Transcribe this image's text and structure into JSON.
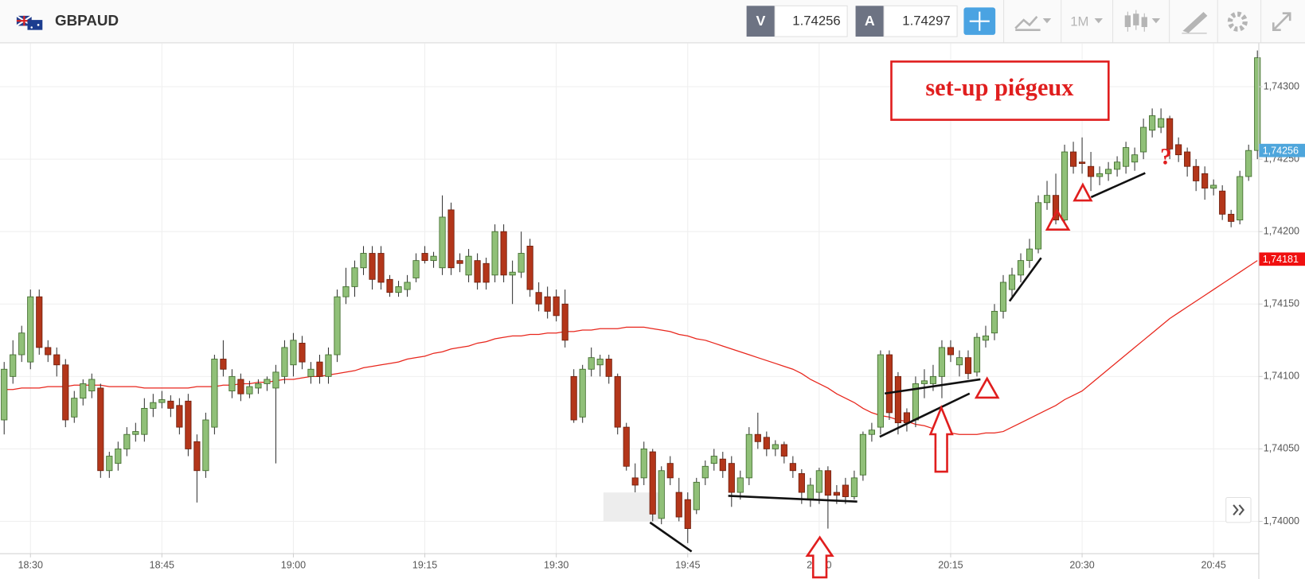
{
  "header": {
    "symbol": "GBPAUD",
    "bid_label": "V",
    "bid": "1.74256",
    "ask_label": "A",
    "ask": "1.74297",
    "timeframe": "1M"
  },
  "chart_data": {
    "type": "candlestick",
    "annotations": {
      "box": "set-up piégeux",
      "question": "?"
    },
    "up_color": "#90c078",
    "down_color": "#b3361a",
    "categories": [
      null,
      null,
      null,
      "18:30",
      null,
      null,
      null,
      null,
      null,
      null,
      null,
      null,
      null,
      null,
      null,
      null,
      null,
      null,
      "18:45",
      null,
      null,
      null,
      null,
      null,
      null,
      null,
      null,
      null,
      null,
      null,
      null,
      null,
      null,
      "19:00",
      null,
      null,
      null,
      null,
      null,
      null,
      null,
      null,
      null,
      null,
      null,
      null,
      null,
      null,
      "19:15",
      null,
      null,
      null,
      null,
      null,
      null,
      null,
      null,
      null,
      null,
      null,
      null,
      null,
      null,
      "19:30",
      null,
      null,
      null,
      null,
      null,
      null,
      null,
      null,
      null,
      null,
      null,
      null,
      null,
      null,
      "19:45",
      null,
      null,
      null,
      null,
      null,
      null,
      null,
      null,
      null,
      null,
      null,
      null,
      null,
      null,
      "20:00",
      null,
      null,
      null,
      null,
      null,
      null,
      null,
      null,
      null,
      null,
      null,
      null,
      null,
      null,
      "20:15",
      null,
      null,
      null,
      null,
      null,
      null,
      null,
      null,
      null,
      null,
      null,
      null,
      null,
      null,
      "20:30",
      null,
      null,
      null,
      null,
      null,
      null,
      null,
      null,
      null,
      null,
      null,
      null,
      null,
      null,
      "20:45",
      null,
      null,
      null,
      null,
      null
    ],
    "candles": [
      [
        1.7407,
        1.7411,
        1.7406,
        1.74105
      ],
      [
        1.741,
        1.74125,
        1.74095,
        1.74115
      ],
      [
        1.74115,
        1.74135,
        1.7411,
        1.7413
      ],
      [
        1.7411,
        1.7416,
        1.74105,
        1.74155
      ],
      [
        1.74155,
        1.7416,
        1.74115,
        1.7412
      ],
      [
        1.7412,
        1.74125,
        1.7411,
        1.74115
      ],
      [
        1.74115,
        1.7412,
        1.741,
        1.74108
      ],
      [
        1.74108,
        1.74112,
        1.74065,
        1.7407
      ],
      [
        1.74072,
        1.7409,
        1.74068,
        1.74085
      ],
      [
        1.74085,
        1.74098,
        1.7408,
        1.74095
      ],
      [
        1.7409,
        1.74102,
        1.74085,
        1.74098
      ],
      [
        1.74092,
        1.74095,
        1.7403,
        1.74035
      ],
      [
        1.74035,
        1.74048,
        1.7403,
        1.74045
      ],
      [
        1.7404,
        1.74055,
        1.74035,
        1.7405
      ],
      [
        1.7405,
        1.74065,
        1.74045,
        1.7406
      ],
      [
        1.7406,
        1.74068,
        1.74055,
        1.74062
      ],
      [
        1.7406,
        1.74085,
        1.74055,
        1.74078
      ],
      [
        1.74078,
        1.74088,
        1.74072,
        1.74082
      ],
      [
        1.74082,
        1.7409,
        1.74078,
        1.74084
      ],
      [
        1.74083,
        1.74087,
        1.74072,
        1.74078
      ],
      [
        1.7408,
        1.74085,
        1.7406,
        1.74065
      ],
      [
        1.74083,
        1.74088,
        1.74045,
        1.7405
      ],
      [
        1.74055,
        1.7406,
        1.74013,
        1.74035
      ],
      [
        1.74035,
        1.74075,
        1.7403,
        1.7407
      ],
      [
        1.74065,
        1.74115,
        1.7406,
        1.74112
      ],
      [
        1.74112,
        1.74125,
        1.741,
        1.74105
      ],
      [
        1.7409,
        1.74105,
        1.74085,
        1.741
      ],
      [
        1.74098,
        1.74102,
        1.74083,
        1.74088
      ],
      [
        1.74088,
        1.74097,
        1.74085,
        1.74093
      ],
      [
        1.74092,
        1.74098,
        1.74088,
        1.74095
      ],
      [
        1.74095,
        1.741,
        1.7409,
        1.74098
      ],
      [
        1.74092,
        1.74108,
        1.7404,
        1.74103
      ],
      [
        1.741,
        1.74125,
        1.74095,
        1.7412
      ],
      [
        1.74108,
        1.7413,
        1.741,
        1.74125
      ],
      [
        1.74123,
        1.74128,
        1.74105,
        1.7411
      ],
      [
        1.741,
        1.7411,
        1.74095,
        1.74105
      ],
      [
        1.7411,
        1.74115,
        1.74095,
        1.741
      ],
      [
        1.741,
        1.7412,
        1.74095,
        1.74115
      ],
      [
        1.74115,
        1.7416,
        1.7411,
        1.74155
      ],
      [
        1.74155,
        1.74175,
        1.7415,
        1.74162
      ],
      [
        1.74162,
        1.7418,
        1.74155,
        1.74175
      ],
      [
        1.74175,
        1.7419,
        1.7417,
        1.74185
      ],
      [
        1.74185,
        1.7419,
        1.7416,
        1.74167
      ],
      [
        1.74185,
        1.7419,
        1.7416,
        1.74165
      ],
      [
        1.74167,
        1.7417,
        1.74155,
        1.74158
      ],
      [
        1.74158,
        1.74166,
        1.74155,
        1.74162
      ],
      [
        1.7416,
        1.7417,
        1.74155,
        1.74165
      ],
      [
        1.74168,
        1.74185,
        1.74165,
        1.7418
      ],
      [
        1.74185,
        1.7419,
        1.74178,
        1.7418
      ],
      [
        1.7418,
        1.74186,
        1.74175,
        1.74183
      ],
      [
        1.74175,
        1.74225,
        1.7417,
        1.7421
      ],
      [
        1.74215,
        1.7422,
        1.7417,
        1.74175
      ],
      [
        1.7418,
        1.74185,
        1.74172,
        1.74178
      ],
      [
        1.7417,
        1.74188,
        1.74165,
        1.74183
      ],
      [
        1.7418,
        1.74185,
        1.7416,
        1.74165
      ],
      [
        1.74178,
        1.74182,
        1.7416,
        1.74165
      ],
      [
        1.7417,
        1.74205,
        1.74165,
        1.742
      ],
      [
        1.742,
        1.74205,
        1.74165,
        1.7417
      ],
      [
        1.7417,
        1.7418,
        1.7415,
        1.74172
      ],
      [
        1.74172,
        1.742,
        1.74168,
        1.74185
      ],
      [
        1.7419,
        1.74195,
        1.74155,
        1.7416
      ],
      [
        1.74158,
        1.74165,
        1.74145,
        1.7415
      ],
      [
        1.74155,
        1.74162,
        1.7414,
        1.74145
      ],
      [
        1.74155,
        1.7416,
        1.74138,
        1.74142
      ],
      [
        1.7415,
        1.7416,
        1.7412,
        1.74125
      ],
      [
        1.741,
        1.74105,
        1.74068,
        1.7407
      ],
      [
        1.74072,
        1.74108,
        1.74068,
        1.74105
      ],
      [
        1.74105,
        1.7412,
        1.741,
        1.74113
      ],
      [
        1.74108,
        1.74115,
        1.741,
        1.74112
      ],
      [
        1.74112,
        1.74115,
        1.74095,
        1.741
      ],
      [
        1.741,
        1.74102,
        1.7406,
        1.74065
      ],
      [
        1.74065,
        1.74068,
        1.74035,
        1.74038
      ],
      [
        1.7403,
        1.7404,
        1.7402,
        1.74025
      ],
      [
        1.7403,
        1.74055,
        1.74025,
        1.7405
      ],
      [
        1.74048,
        1.7405,
        1.74,
        1.74005
      ],
      [
        1.74002,
        1.74038,
        1.73998,
        1.74035
      ],
      [
        1.7404,
        1.74045,
        1.74025,
        1.7403
      ],
      [
        1.7402,
        1.7403,
        1.74,
        1.74003
      ],
      [
        1.74015,
        1.7402,
        1.73985,
        1.73995
      ],
      [
        1.74008,
        1.7403,
        1.74005,
        1.74027
      ],
      [
        1.7403,
        1.74042,
        1.74025,
        1.74038
      ],
      [
        1.7404,
        1.7405,
        1.74035,
        1.74045
      ],
      [
        1.74043,
        1.74048,
        1.7403,
        1.74035
      ],
      [
        1.7404,
        1.74045,
        1.7401,
        1.7402
      ],
      [
        1.7402,
        1.74035,
        1.74015,
        1.7403
      ],
      [
        1.7403,
        1.74065,
        1.74025,
        1.7406
      ],
      [
        1.7406,
        1.74075,
        1.7405,
        1.74055
      ],
      [
        1.74058,
        1.74062,
        1.74045,
        1.7405
      ],
      [
        1.7405,
        1.74056,
        1.74045,
        1.74053
      ],
      [
        1.74053,
        1.74055,
        1.7404,
        1.74045
      ],
      [
        1.7404,
        1.74045,
        1.7403,
        1.74035
      ],
      [
        1.74033,
        1.74036,
        1.74012,
        1.7402
      ],
      [
        1.74015,
        1.7403,
        1.7401,
        1.74025
      ],
      [
        1.7402,
        1.74037,
        1.74012,
        1.74035
      ],
      [
        1.74035,
        1.74038,
        1.73995,
        1.74018
      ],
      [
        1.7402,
        1.74025,
        1.74012,
        1.74018
      ],
      [
        1.74025,
        1.7403,
        1.74012,
        1.74017
      ],
      [
        1.74017,
        1.74035,
        1.74015,
        1.7403
      ],
      [
        1.74032,
        1.74062,
        1.74028,
        1.7406
      ],
      [
        1.7406,
        1.74068,
        1.74055,
        1.74063
      ],
      [
        1.74065,
        1.74118,
        1.7406,
        1.74115
      ],
      [
        1.74115,
        1.74118,
        1.7407,
        1.74075
      ],
      [
        1.741,
        1.74103,
        1.7406,
        1.74068
      ],
      [
        1.74075,
        1.74078,
        1.74062,
        1.74068
      ],
      [
        1.7407,
        1.741,
        1.74065,
        1.74095
      ],
      [
        1.74095,
        1.74105,
        1.74085,
        1.74097
      ],
      [
        1.74095,
        1.74108,
        1.7409,
        1.741
      ],
      [
        1.741,
        1.74125,
        1.74085,
        1.7412
      ],
      [
        1.7412,
        1.74125,
        1.7411,
        1.74115
      ],
      [
        1.74108,
        1.74118,
        1.741,
        1.74113
      ],
      [
        1.74113,
        1.74118,
        1.74098,
        1.74102
      ],
      [
        1.74103,
        1.7413,
        1.741,
        1.74127
      ],
      [
        1.74125,
        1.74135,
        1.7412,
        1.74128
      ],
      [
        1.7413,
        1.7415,
        1.74125,
        1.74145
      ],
      [
        1.74145,
        1.7417,
        1.7414,
        1.74165
      ],
      [
        1.7416,
        1.74175,
        1.74155,
        1.7417
      ],
      [
        1.7417,
        1.74185,
        1.74165,
        1.7418
      ],
      [
        1.7418,
        1.74195,
        1.74175,
        1.74188
      ],
      [
        1.74188,
        1.74225,
        1.74185,
        1.7422
      ],
      [
        1.7422,
        1.74235,
        1.74215,
        1.74225
      ],
      [
        1.74225,
        1.7424,
        1.74205,
        1.74208
      ],
      [
        1.74208,
        1.7426,
        1.74205,
        1.74255
      ],
      [
        1.74255,
        1.74262,
        1.7424,
        1.74245
      ],
      [
        1.74248,
        1.74265,
        1.7424,
        1.74247
      ],
      [
        1.74245,
        1.74255,
        1.74228,
        1.74238
      ],
      [
        1.74238,
        1.74245,
        1.74232,
        1.7424
      ],
      [
        1.7424,
        1.74248,
        1.74235,
        1.74243
      ],
      [
        1.74243,
        1.74252,
        1.74238,
        1.74248
      ],
      [
        1.74245,
        1.74262,
        1.7424,
        1.74258
      ],
      [
        1.74248,
        1.74258,
        1.74242,
        1.74253
      ],
      [
        1.74255,
        1.74278,
        1.7425,
        1.74272
      ],
      [
        1.7427,
        1.74285,
        1.74265,
        1.7428
      ],
      [
        1.74272,
        1.74285,
        1.74268,
        1.74278
      ],
      [
        1.74278,
        1.7428,
        1.7425,
        1.74257
      ],
      [
        1.7426,
        1.74265,
        1.74248,
        1.74253
      ],
      [
        1.74255,
        1.74258,
        1.74238,
        1.74245
      ],
      [
        1.74245,
        1.7425,
        1.74228,
        1.74235
      ],
      [
        1.7424,
        1.74245,
        1.74222,
        1.7423
      ],
      [
        1.7423,
        1.74236,
        1.74225,
        1.74232
      ],
      [
        1.74228,
        1.74232,
        1.74208,
        1.74212
      ],
      [
        1.74212,
        1.74215,
        1.74203,
        1.74207
      ],
      [
        1.74208,
        1.74242,
        1.74205,
        1.74238
      ],
      [
        1.74238,
        1.7426,
        1.74235,
        1.74256
      ],
      [
        1.74256,
        1.74325,
        1.7425,
        1.7432
      ]
    ],
    "moving_average": {
      "color": "#e8261c",
      "values": [
        1.74091,
        1.74091,
        1.74092,
        1.74092,
        1.74092,
        1.74093,
        1.74093,
        1.74093,
        1.74094,
        1.74094,
        1.74094,
        1.74094,
        1.74093,
        1.74093,
        1.74093,
        1.74093,
        1.74092,
        1.74092,
        1.74092,
        1.74092,
        1.74092,
        1.74092,
        1.74093,
        1.74093,
        1.74093,
        1.74094,
        1.74094,
        1.74095,
        1.74095,
        1.74096,
        1.74096,
        1.74097,
        1.74098,
        1.74098,
        1.74099,
        1.741,
        1.741,
        1.74101,
        1.74102,
        1.74103,
        1.74104,
        1.74106,
        1.74107,
        1.74108,
        1.74109,
        1.7411,
        1.74112,
        1.74113,
        1.74114,
        1.74116,
        1.74117,
        1.74119,
        1.7412,
        1.74121,
        1.74123,
        1.74124,
        1.74126,
        1.74127,
        1.74128,
        1.74128,
        1.74129,
        1.74129,
        1.7413,
        1.7413,
        1.74131,
        1.74131,
        1.74132,
        1.74132,
        1.74133,
        1.74133,
        1.74133,
        1.74134,
        1.74134,
        1.74134,
        1.74133,
        1.74132,
        1.74131,
        1.74129,
        1.74128,
        1.74126,
        1.74125,
        1.74123,
        1.74121,
        1.74119,
        1.74117,
        1.74115,
        1.74113,
        1.74111,
        1.74109,
        1.74107,
        1.74105,
        1.74102,
        1.74098,
        1.74095,
        1.74092,
        1.74088,
        1.74085,
        1.74082,
        1.74078,
        1.74075,
        1.74073,
        1.74072,
        1.7407,
        1.74069,
        1.74067,
        1.74066,
        1.74064,
        1.74063,
        1.74061,
        1.7406,
        1.7406,
        1.7406,
        1.74061,
        1.74061,
        1.74062,
        1.74065,
        1.74068,
        1.74071,
        1.74074,
        1.74077,
        1.7408,
        1.74084,
        1.74087,
        1.7409,
        1.74095,
        1.741,
        1.74105,
        1.7411,
        1.74115,
        1.7412,
        1.74125,
        1.7413,
        1.74135,
        1.7414,
        1.74144,
        1.74148,
        1.74152,
        1.74156,
        1.7416,
        1.74164,
        1.74168,
        1.74172,
        1.74176,
        1.7418
      ]
    },
    "ylim": [
      1.73978,
      1.7433
    ],
    "yticks": [
      {
        "value": 1.74,
        "label": "1,74000"
      },
      {
        "value": 1.7405,
        "label": "1,74050"
      },
      {
        "value": 1.741,
        "label": "1,74100"
      },
      {
        "value": 1.7415,
        "label": "1,74150"
      },
      {
        "value": 1.742,
        "label": "1,74200"
      },
      {
        "value": 1.7425,
        "label": "1,74250"
      },
      {
        "value": 1.743,
        "label": "1,74300"
      }
    ],
    "price_tags": [
      {
        "value": 1.74256,
        "label": "1,74256",
        "color": "#4ea6dc"
      },
      {
        "value": 1.74181,
        "label": "1,74181",
        "color": "#f01010"
      }
    ],
    "grid": true
  }
}
